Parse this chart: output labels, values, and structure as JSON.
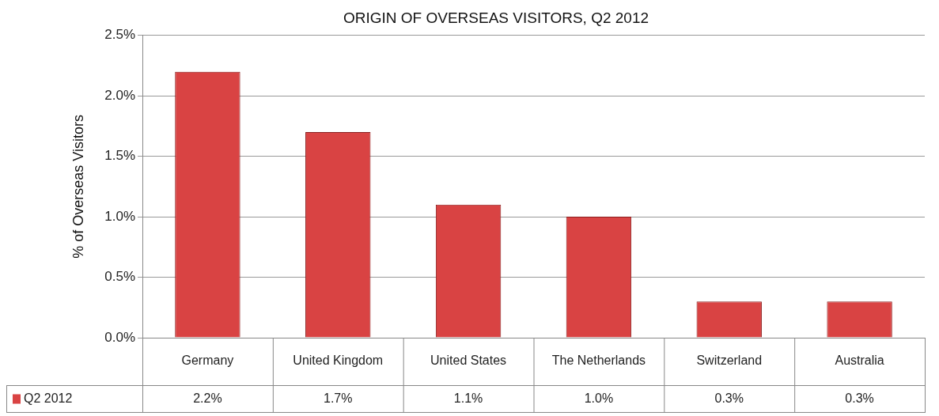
{
  "chart_data": {
    "type": "bar",
    "title": "ORIGIN OF OVERSEAS VISITORS, Q2 2012",
    "ylabel": "% of Overseas Visitors",
    "categories": [
      "Germany",
      "United Kingdom",
      "United States",
      "The Netherlands",
      "Switzerland",
      "Australia"
    ],
    "series": [
      {
        "name": "Q2 2012",
        "color": "#d94343",
        "values": [
          2.2,
          1.7,
          1.1,
          1.0,
          0.3,
          0.3
        ],
        "value_labels": [
          "2.2%",
          "1.7%",
          "1.1%",
          "1.0%",
          "0.3%",
          "0.3%"
        ]
      }
    ],
    "ylim": [
      0,
      2.5
    ],
    "yticks": [
      {
        "value": 0,
        "label": "0.0%"
      },
      {
        "value": 0.5,
        "label": "0.5%"
      },
      {
        "value": 1,
        "label": "1.0%"
      },
      {
        "value": 1.5,
        "label": "1.5%"
      },
      {
        "value": 2,
        "label": "2.0%"
      },
      {
        "value": 2.5,
        "label": "2.5%"
      }
    ],
    "grid": "y",
    "data_labels": true,
    "legend": "bottom left"
  }
}
